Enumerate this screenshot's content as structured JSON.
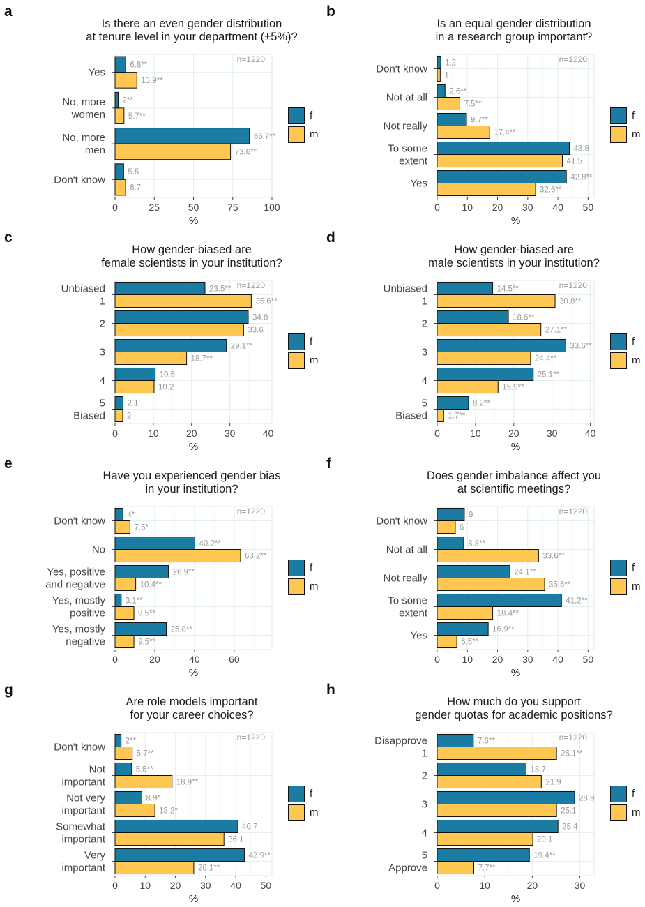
{
  "colors": {
    "f": "#1a7ba3",
    "m": "#fdc751"
  },
  "legend": [
    {
      "key": "f",
      "label": "f"
    },
    {
      "key": "m",
      "label": "m"
    }
  ],
  "chart_data": [
    {
      "panel": "a",
      "type": "bar",
      "orientation": "horizontal",
      "title": "Is there an even gender distribution\nat tenure level in your department (±5%)?",
      "n_label": "n=1220",
      "xlabel": "%",
      "xlim": [
        0,
        100
      ],
      "xticks": [
        0,
        25,
        50,
        75,
        100
      ],
      "categories": [
        "Yes",
        "No, more\nwomen",
        "No, more\nmen",
        "Don't know"
      ],
      "series": [
        {
          "name": "f",
          "values": [
            6.8,
            2,
            85.7,
            5.5
          ],
          "labels": [
            "6.8**",
            "2**",
            "85.7**",
            "5.5"
          ]
        },
        {
          "name": "m",
          "values": [
            13.9,
            5.7,
            73.6,
            6.7
          ],
          "labels": [
            "13.9**",
            "5.7**",
            "73.6**",
            "6.7"
          ]
        }
      ]
    },
    {
      "panel": "b",
      "type": "bar",
      "orientation": "horizontal",
      "title": "Is an equal gender distribution\nin a research group important?",
      "n_label": "n=1220",
      "xlabel": "%",
      "xlim": [
        0,
        52
      ],
      "xticks": [
        0,
        10,
        20,
        30,
        40,
        50
      ],
      "categories": [
        "Don't know",
        "Not at all",
        "Not really",
        "To some\nextent",
        "Yes"
      ],
      "series": [
        {
          "name": "f",
          "values": [
            1.2,
            2.6,
            9.7,
            43.8,
            42.8
          ],
          "labels": [
            "1.2",
            "2.6**",
            "9.7**",
            "43.8",
            "42.8**"
          ]
        },
        {
          "name": "m",
          "values": [
            1,
            7.5,
            17.4,
            41.5,
            32.6
          ],
          "labels": [
            "1",
            "7.5**",
            "17.4**",
            "41.5",
            "32.6**"
          ]
        }
      ]
    },
    {
      "panel": "c",
      "type": "bar",
      "orientation": "horizontal",
      "title": "How gender-biased are\nfemale scientists in your institution?",
      "n_label": "n=1220",
      "xlabel": "%",
      "xlim": [
        0,
        41
      ],
      "xticks": [
        0,
        10,
        20,
        30,
        40
      ],
      "categories": [
        "Unbiased\n1",
        "2",
        "3",
        "4",
        "5\nBiased"
      ],
      "series": [
        {
          "name": "f",
          "values": [
            23.5,
            34.8,
            29.1,
            10.5,
            2.1
          ],
          "labels": [
            "23.5**",
            "34.8",
            "29.1**",
            "10.5",
            "2.1"
          ]
        },
        {
          "name": "m",
          "values": [
            35.6,
            33.6,
            18.7,
            10.2,
            2
          ],
          "labels": [
            "35.6**",
            "33.6",
            "18.7**",
            "10.2",
            "2"
          ]
        }
      ]
    },
    {
      "panel": "d",
      "type": "bar",
      "orientation": "horizontal",
      "title": "How gender-biased are\nmale scientists in your institution?",
      "n_label": "n=1220",
      "xlabel": "%",
      "xlim": [
        0,
        41
      ],
      "xticks": [
        0,
        10,
        20,
        30,
        40
      ],
      "categories": [
        "Unbiased\n1",
        "2",
        "3",
        "4",
        "5\nBiased"
      ],
      "series": [
        {
          "name": "f",
          "values": [
            14.5,
            18.6,
            33.6,
            25.1,
            8.2
          ],
          "labels": [
            "14.5**",
            "18.6**",
            "33.6**",
            "25.1**",
            "8.2**"
          ]
        },
        {
          "name": "m",
          "values": [
            30.8,
            27.1,
            24.4,
            15.9,
            1.7
          ],
          "labels": [
            "30.8**",
            "27.1**",
            "24.4**",
            "15.9**",
            "1.7**"
          ]
        }
      ]
    },
    {
      "panel": "e",
      "type": "bar",
      "orientation": "horizontal",
      "title": "Have you experienced gender bias\nin your institution?",
      "n_label": "n=1220",
      "xlabel": "%",
      "xlim": [
        0,
        79
      ],
      "xticks": [
        0,
        20,
        40,
        60
      ],
      "categories": [
        "Don't know",
        "No",
        "Yes, positive\nand negative",
        "Yes, mostly\npositive",
        "Yes, mostly\nnegative"
      ],
      "series": [
        {
          "name": "f",
          "values": [
            4,
            40.2,
            26.9,
            3.1,
            25.8
          ],
          "labels": [
            "4*",
            "40.2**",
            "26.9**",
            "3.1**",
            "25.8**"
          ]
        },
        {
          "name": "m",
          "values": [
            7.5,
            63.2,
            10.4,
            9.5,
            9.5
          ],
          "labels": [
            "7.5*",
            "63.2**",
            "10.4**",
            "9.5**",
            "9.5**"
          ]
        }
      ]
    },
    {
      "panel": "f",
      "type": "bar",
      "orientation": "horizontal",
      "title": "Does gender imbalance affect you\nat scientific meetings?",
      "n_label": "n=1220",
      "xlabel": "%",
      "xlim": [
        0,
        52
      ],
      "xticks": [
        0,
        10,
        20,
        30,
        40,
        50
      ],
      "categories": [
        "Don't know",
        "Not at all",
        "Not really",
        "To some\nextent",
        "Yes"
      ],
      "series": [
        {
          "name": "f",
          "values": [
            9,
            8.8,
            24.1,
            41.2,
            16.9
          ],
          "labels": [
            "9",
            "8.8**",
            "24.1**",
            "41.2**",
            "16.9**"
          ]
        },
        {
          "name": "m",
          "values": [
            6,
            33.6,
            35.6,
            18.4,
            6.5
          ],
          "labels": [
            "6",
            "33.6**",
            "35.6**",
            "18.4**",
            "6.5**"
          ]
        }
      ]
    },
    {
      "panel": "g",
      "type": "bar",
      "orientation": "horizontal",
      "title": "Are role models important\nfor your career choices?",
      "n_label": "n=1220",
      "xlabel": "%",
      "xlim": [
        0,
        52
      ],
      "xticks": [
        0,
        10,
        20,
        30,
        40,
        50
      ],
      "categories": [
        "Don't know",
        "Not\nimportant",
        "Not very\nimportant",
        "Somewhat\nimportant",
        "Very\nimportant"
      ],
      "series": [
        {
          "name": "f",
          "values": [
            2,
            5.5,
            8.9,
            40.7,
            42.9
          ],
          "labels": [
            "2**",
            "5.5**",
            "8.9*",
            "40.7",
            "42.9**"
          ]
        },
        {
          "name": "m",
          "values": [
            5.7,
            18.9,
            13.2,
            36.1,
            26.1
          ],
          "labels": [
            "5.7**",
            "18.9**",
            "13.2*",
            "36.1",
            "26.1**"
          ]
        }
      ]
    },
    {
      "panel": "h",
      "type": "bar",
      "orientation": "horizontal",
      "title": "How much do you support\ngender quotas for academic positions?",
      "n_label": "n=1220",
      "xlabel": "%",
      "xlim": [
        0,
        33
      ],
      "xticks": [
        0,
        10,
        20,
        30
      ],
      "categories": [
        "Disapprove\n1",
        "2",
        "3",
        "4",
        "5\nApprove"
      ],
      "series": [
        {
          "name": "f",
          "values": [
            7.6,
            18.7,
            28.9,
            25.4,
            19.4
          ],
          "labels": [
            "7.6**",
            "18.7",
            "28.9",
            "25.4",
            "19.4**"
          ]
        },
        {
          "name": "m",
          "values": [
            25.1,
            21.9,
            25.1,
            20.1,
            7.7
          ],
          "labels": [
            "25.1**",
            "21.9",
            "25.1",
            "20.1",
            "7.7**"
          ]
        }
      ]
    }
  ]
}
